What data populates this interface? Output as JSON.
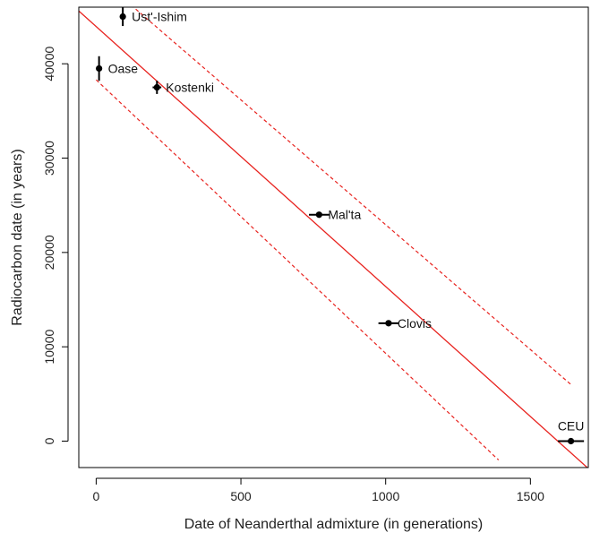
{
  "chart_data": {
    "type": "scatter",
    "xlabel": "Date of Neanderthal admixture (in generations)",
    "ylabel": "Radiocarbon date (in years)",
    "xlim": [
      -60,
      1700
    ],
    "ylim": [
      -2800,
      46000
    ],
    "xticks": [
      0,
      500,
      1000,
      1500
    ],
    "yticks": [
      0,
      10000,
      20000,
      30000,
      40000
    ],
    "grid": false,
    "colors": {
      "points": "#000000",
      "fit": "#e8231f",
      "frame": "#000000"
    },
    "points": [
      {
        "label": "Ust'-Ishim",
        "x": 92,
        "y": 45000,
        "xerr": 0,
        "yerr": 1000,
        "label_side": "right"
      },
      {
        "label": "Oase",
        "x": 10,
        "y": 39500,
        "xerr": 0,
        "yerr": 1300,
        "label_side": "right"
      },
      {
        "label": "Kostenki",
        "x": 210,
        "y": 37500,
        "xerr": 15,
        "yerr": 700,
        "label_side": "right"
      },
      {
        "label": "Mal'ta",
        "x": 770,
        "y": 24000,
        "xerr": 35,
        "yerr": 0,
        "label_side": "right"
      },
      {
        "label": "Clovis",
        "x": 1010,
        "y": 12500,
        "xerr": 35,
        "yerr": 0,
        "label_side": "right"
      },
      {
        "label": "CEU",
        "x": 1640,
        "y": 0,
        "xerr": 45,
        "yerr": 0,
        "label_side": "above"
      }
    ],
    "fit_line": {
      "x": [
        -60,
        1700
      ],
      "y": [
        45600,
        -2900
      ]
    },
    "band_upper": {
      "x": [
        -60,
        1640
      ],
      "y": [
        51000,
        6000
      ]
    },
    "band_lower": {
      "x": [
        0,
        1390
      ],
      "y": [
        38300,
        -2000
      ]
    }
  }
}
